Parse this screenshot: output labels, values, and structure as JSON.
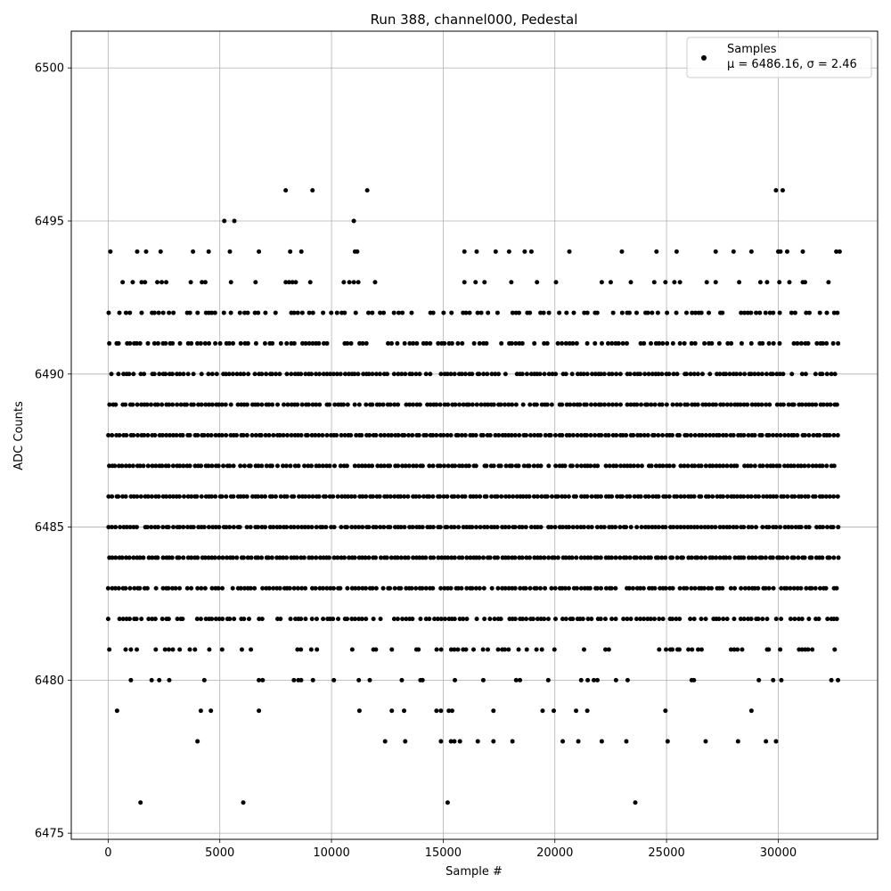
{
  "chart_data": {
    "type": "scatter",
    "title": "Run 388, channel000, Pedestal",
    "xlabel": "Sample #",
    "ylabel": "ADC Counts",
    "xlim": [
      -1650,
      34450
    ],
    "ylim": [
      6474.8,
      6501.2
    ],
    "x_ticks": [
      0,
      5000,
      10000,
      15000,
      20000,
      25000,
      30000
    ],
    "y_ticks": [
      6475,
      6480,
      6485,
      6490,
      6495,
      6500
    ],
    "grid": true,
    "legend_position": "top-right",
    "series": [
      {
        "name": "Samples",
        "color": "#000000",
        "sample_range": [
          0,
          32767
        ],
        "dense_levels": [
          6480,
          6481,
          6482,
          6483,
          6484,
          6485,
          6486,
          6487,
          6488,
          6489,
          6490,
          6491,
          6492
        ],
        "level_density": {
          "6480": 0.22,
          "6481": 0.35,
          "6482": 0.75,
          "6483": 0.9,
          "6484": 1.0,
          "6485": 0.95,
          "6486": 1.0,
          "6487": 0.95,
          "6488": 1.0,
          "6489": 0.95,
          "6490": 0.85,
          "6491": 0.6,
          "6492": 0.55
        },
        "sparse_points": [
          [
            100,
            6494
          ],
          [
            1300,
            6494
          ],
          [
            1700,
            6494
          ],
          [
            2350,
            6494
          ],
          [
            3800,
            6494
          ],
          [
            4500,
            6494
          ],
          [
            5450,
            6494
          ],
          [
            6750,
            6494
          ],
          [
            8150,
            6494
          ],
          [
            8650,
            6494
          ],
          [
            11050,
            6494
          ],
          [
            11150,
            6494
          ],
          [
            15950,
            6494
          ],
          [
            16500,
            6494
          ],
          [
            17350,
            6494
          ],
          [
            17950,
            6494
          ],
          [
            18650,
            6494
          ],
          [
            18950,
            6494
          ],
          [
            20650,
            6494
          ],
          [
            23000,
            6494
          ],
          [
            24550,
            6494
          ],
          [
            25450,
            6494
          ],
          [
            27200,
            6494
          ],
          [
            28000,
            6494
          ],
          [
            28800,
            6494
          ],
          [
            30000,
            6494
          ],
          [
            30100,
            6494
          ],
          [
            30400,
            6494
          ],
          [
            31100,
            6494
          ],
          [
            32600,
            6494
          ],
          [
            32750,
            6494
          ],
          [
            650,
            6493
          ],
          [
            1100,
            6493
          ],
          [
            1500,
            6493
          ],
          [
            1650,
            6493
          ],
          [
            2200,
            6493
          ],
          [
            2400,
            6493
          ],
          [
            2600,
            6493
          ],
          [
            3700,
            6493
          ],
          [
            4200,
            6493
          ],
          [
            4350,
            6493
          ],
          [
            5500,
            6493
          ],
          [
            6600,
            6493
          ],
          [
            7950,
            6493
          ],
          [
            8100,
            6493
          ],
          [
            8250,
            6493
          ],
          [
            8400,
            6493
          ],
          [
            9050,
            6493
          ],
          [
            10550,
            6493
          ],
          [
            10800,
            6493
          ],
          [
            11000,
            6493
          ],
          [
            11200,
            6493
          ],
          [
            11950,
            6493
          ],
          [
            15950,
            6493
          ],
          [
            16450,
            6493
          ],
          [
            16850,
            6493
          ],
          [
            18050,
            6493
          ],
          [
            19200,
            6493
          ],
          [
            20050,
            6493
          ],
          [
            22100,
            6493
          ],
          [
            22500,
            6493
          ],
          [
            23400,
            6493
          ],
          [
            24450,
            6493
          ],
          [
            24950,
            6493
          ],
          [
            25350,
            6493
          ],
          [
            25600,
            6493
          ],
          [
            26800,
            6493
          ],
          [
            27200,
            6493
          ],
          [
            28250,
            6493
          ],
          [
            29200,
            6493
          ],
          [
            29500,
            6493
          ],
          [
            30050,
            6493
          ],
          [
            30500,
            6493
          ],
          [
            31100,
            6493
          ],
          [
            31200,
            6493
          ],
          [
            32250,
            6493
          ],
          [
            1450,
            6476
          ],
          [
            6050,
            6476
          ],
          [
            15200,
            6476
          ],
          [
            23600,
            6476
          ],
          [
            7950,
            6496
          ],
          [
            9150,
            6496
          ],
          [
            11600,
            6496
          ],
          [
            29900,
            6496
          ],
          [
            30200,
            6496
          ],
          [
            5200,
            6495
          ],
          [
            5650,
            6495
          ],
          [
            11000,
            6495
          ],
          [
            4000,
            6478
          ],
          [
            12400,
            6478
          ],
          [
            13300,
            6478
          ],
          [
            14900,
            6478
          ],
          [
            15350,
            6478
          ],
          [
            15500,
            6478
          ],
          [
            15750,
            6478
          ],
          [
            16550,
            6478
          ],
          [
            17250,
            6478
          ],
          [
            18100,
            6478
          ],
          [
            20350,
            6478
          ],
          [
            21050,
            6478
          ],
          [
            22100,
            6478
          ],
          [
            23200,
            6478
          ],
          [
            25050,
            6478
          ],
          [
            26750,
            6478
          ],
          [
            28200,
            6478
          ],
          [
            29450,
            6478
          ],
          [
            29900,
            6478
          ],
          [
            400,
            6479
          ],
          [
            4150,
            6479
          ],
          [
            4600,
            6479
          ],
          [
            6750,
            6479
          ],
          [
            11250,
            6479
          ],
          [
            12700,
            6479
          ],
          [
            13250,
            6479
          ],
          [
            14700,
            6479
          ],
          [
            14900,
            6479
          ],
          [
            15250,
            6479
          ],
          [
            15400,
            6479
          ],
          [
            17250,
            6479
          ],
          [
            19450,
            6479
          ],
          [
            19950,
            6479
          ],
          [
            20950,
            6479
          ],
          [
            21450,
            6479
          ],
          [
            24950,
            6479
          ],
          [
            28800,
            6479
          ]
        ]
      }
    ],
    "legend": {
      "label": "Samples",
      "stats": "μ = 6486.16, σ = 2.46"
    }
  }
}
